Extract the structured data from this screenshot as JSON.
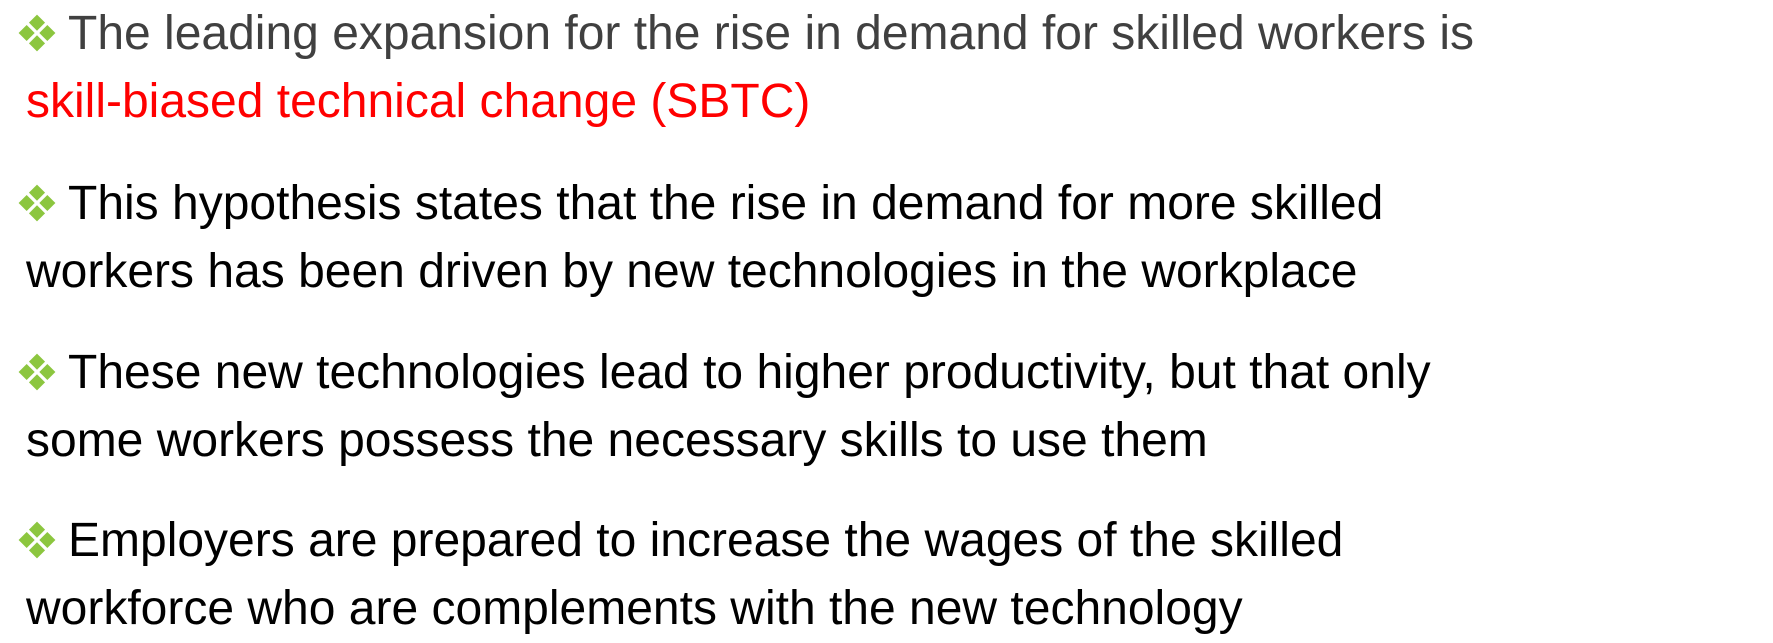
{
  "bullets": [
    {
      "lines": [
        "The leading expansion for the rise in demand for skilled workers is",
        "skill-biased technical change (SBTC)"
      ]
    },
    {
      "lines": [
        "This hypothesis states that the rise in demand for more skilled",
        "workers has been driven by new technologies in the workplace"
      ]
    },
    {
      "lines": [
        "These new technologies lead to higher productivity, but that only",
        "some workers possess the necessary skills to use them"
      ]
    },
    {
      "lines": [
        "Employers are prepared to increase the wages of the skilled",
        "workforce who are complements with the new technology"
      ]
    }
  ]
}
